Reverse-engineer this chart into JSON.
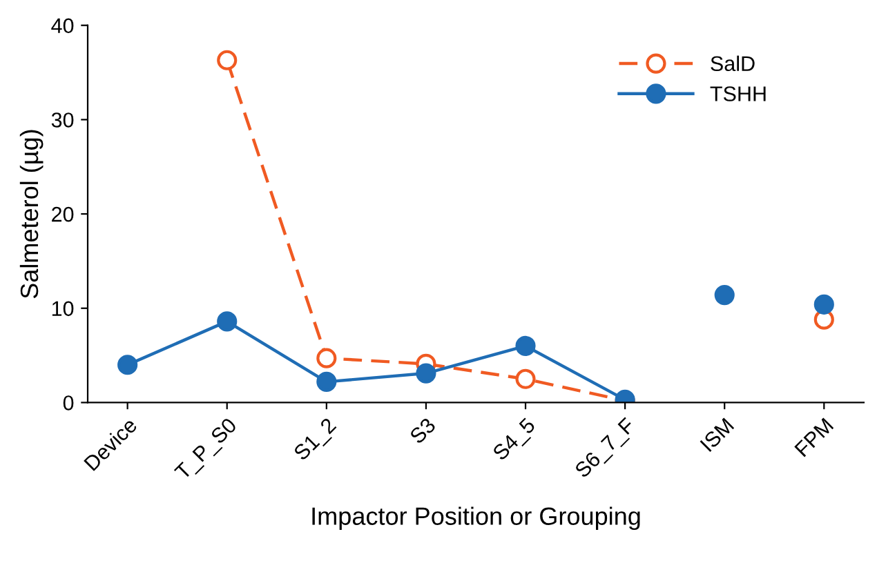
{
  "chart_data": {
    "type": "line",
    "xlabel": "Impactor Position or Grouping",
    "ylabel": "Salmeterol (µg)",
    "categories": [
      "Device",
      "T_P_S0",
      "S1_2",
      "S3",
      "S4_5",
      "S6_7_F",
      "ISM",
      "FPM"
    ],
    "ylim": [
      0,
      40
    ],
    "yticks": [
      0,
      10,
      20,
      30,
      40
    ],
    "grid": false,
    "legend": "top right",
    "series": [
      {
        "name": "SalD",
        "color": "#f05a22",
        "values": [
          null,
          36.3,
          4.7,
          4.1,
          2.5,
          0.2,
          null,
          8.8
        ],
        "line_style": "dashed",
        "marker": "circle"
      },
      {
        "name": "TSHH",
        "color": "#1f6db5",
        "values": [
          4.0,
          8.6,
          2.2,
          3.1,
          6.0,
          0.3,
          null,
          null
        ],
        "line_style": "solid",
        "marker": "circle"
      },
      {
        "type": "scatter",
        "color": "#1f6db5",
        "values": [
          null,
          null,
          null,
          null,
          null,
          null,
          11.4,
          10.4
        ],
        "marker": "circle"
      }
    ]
  }
}
